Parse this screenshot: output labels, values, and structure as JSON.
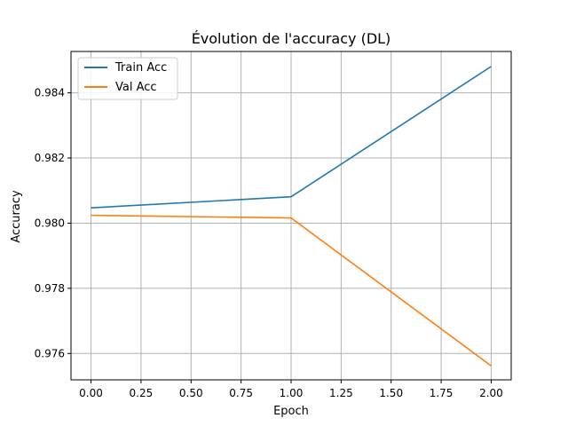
{
  "chart_data": {
    "type": "line",
    "title": "Évolution de l'accuracy (DL)",
    "xlabel": "Epoch",
    "ylabel": "Accuracy",
    "xlim": [
      -0.1,
      2.1
    ],
    "ylim": [
      0.97519,
      0.98527
    ],
    "xticks": [
      0.0,
      0.25,
      0.5,
      0.75,
      1.0,
      1.25,
      1.5,
      1.75,
      2.0
    ],
    "xtick_labels": [
      "0.00",
      "0.25",
      "0.50",
      "0.75",
      "1.00",
      "1.25",
      "1.50",
      "1.75",
      "2.00"
    ],
    "yticks": [
      0.976,
      0.978,
      0.98,
      0.982,
      0.984
    ],
    "ytick_labels": [
      "0.976",
      "0.978",
      "0.980",
      "0.982",
      "0.984"
    ],
    "grid": true,
    "legend_position": "top-left",
    "series": [
      {
        "name": "Train Acc",
        "color": "#1f77b4",
        "x": [
          0,
          1,
          2
        ],
        "y": [
          0.98047,
          0.98081,
          0.98481
        ]
      },
      {
        "name": "Val Acc",
        "color": "#ff7f0e",
        "x": [
          0,
          1,
          2
        ],
        "y": [
          0.98024,
          0.98016,
          0.97562
        ]
      }
    ]
  }
}
